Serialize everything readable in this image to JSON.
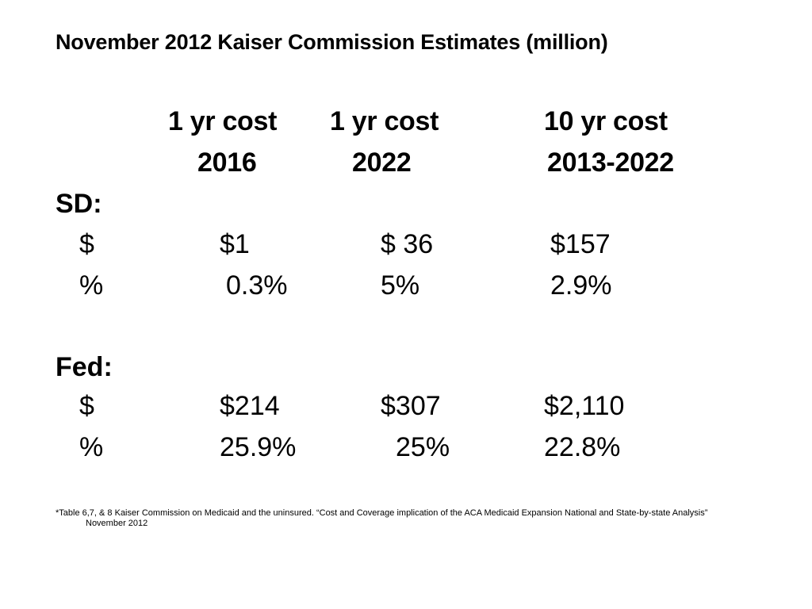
{
  "title": "November 2012 Kaiser Commission Estimates (million)",
  "columns": [
    {
      "line1": "1 yr cost",
      "line2": "2016"
    },
    {
      "line1": "1 yr cost",
      "line2": "2022"
    },
    {
      "line1": "10 yr cost",
      "line2": "2013-2022"
    }
  ],
  "sections": [
    {
      "label": "SD:",
      "rows": [
        {
          "unit": "$",
          "values": [
            "$1",
            "$ 36",
            "$157"
          ]
        },
        {
          "unit": "%",
          "values": [
            "0.3%",
            "5%",
            "2.9%"
          ]
        }
      ]
    },
    {
      "label": "Fed:",
      "rows": [
        {
          "unit": "$",
          "values": [
            "$214",
            "$307",
            "$2,110"
          ]
        },
        {
          "unit": "%",
          "values": [
            "25.9%",
            "25%",
            "22.8%"
          ]
        }
      ]
    }
  ],
  "footnote": {
    "line1": "*Table 6,7, & 8 Kaiser Commission on Medicaid and the uninsured.   “Cost and Coverage implication of the ACA Medicaid Expansion National and State-by-state Analysis”",
    "line2": "November 2012"
  }
}
